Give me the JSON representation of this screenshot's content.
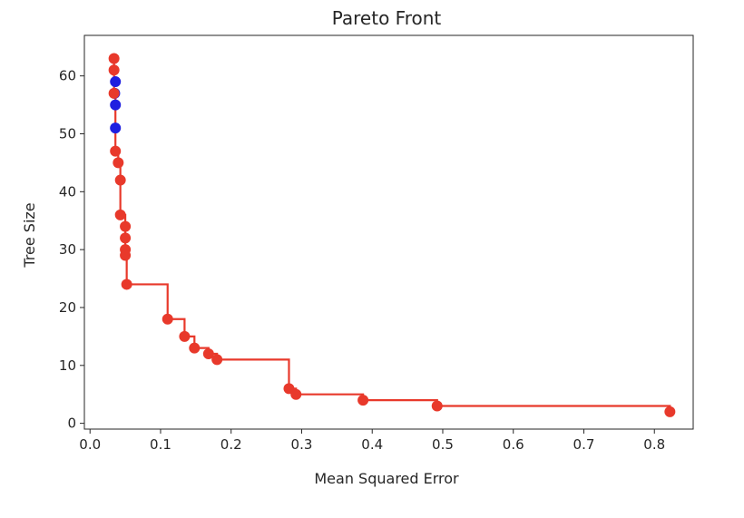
{
  "chart_data": {
    "type": "scatter",
    "title": "Pareto Front",
    "xlabel": "Mean Squared Error",
    "ylabel": "Tree Size",
    "xlim": [
      -0.008,
      0.855
    ],
    "ylim": [
      -1,
      67
    ],
    "xticks": [
      0.0,
      0.1,
      0.2,
      0.3,
      0.4,
      0.5,
      0.6,
      0.7,
      0.8
    ],
    "xtick_labels": [
      "0.0",
      "0.1",
      "0.2",
      "0.3",
      "0.4",
      "0.5",
      "0.6",
      "0.7",
      "0.8"
    ],
    "yticks": [
      0,
      10,
      20,
      30,
      40,
      50,
      60
    ],
    "ytick_labels": [
      "0",
      "10",
      "20",
      "30",
      "40",
      "50",
      "60"
    ],
    "grid": false,
    "legend": false,
    "series": [
      {
        "color": "#1f1fe0",
        "marker": "circle",
        "points": [
          {
            "x": 0.036,
            "y": 59
          },
          {
            "x": 0.035,
            "y": 57
          },
          {
            "x": 0.036,
            "y": 55
          },
          {
            "x": 0.036,
            "y": 51
          }
        ]
      },
      {
        "color": "#e8392b",
        "marker": "circle",
        "line": "step",
        "points": [
          {
            "x": 0.034,
            "y": 63
          },
          {
            "x": 0.034,
            "y": 61
          },
          {
            "x": 0.034,
            "y": 57
          },
          {
            "x": 0.036,
            "y": 47
          },
          {
            "x": 0.04,
            "y": 45
          },
          {
            "x": 0.043,
            "y": 42
          },
          {
            "x": 0.043,
            "y": 36
          },
          {
            "x": 0.05,
            "y": 34
          },
          {
            "x": 0.05,
            "y": 32
          },
          {
            "x": 0.05,
            "y": 30
          },
          {
            "x": 0.05,
            "y": 29
          },
          {
            "x": 0.052,
            "y": 24
          },
          {
            "x": 0.11,
            "y": 18
          },
          {
            "x": 0.134,
            "y": 15
          },
          {
            "x": 0.148,
            "y": 13
          },
          {
            "x": 0.168,
            "y": 12
          },
          {
            "x": 0.18,
            "y": 11
          },
          {
            "x": 0.282,
            "y": 6
          },
          {
            "x": 0.292,
            "y": 5
          },
          {
            "x": 0.387,
            "y": 4
          },
          {
            "x": 0.492,
            "y": 3
          },
          {
            "x": 0.822,
            "y": 2
          }
        ]
      }
    ]
  }
}
